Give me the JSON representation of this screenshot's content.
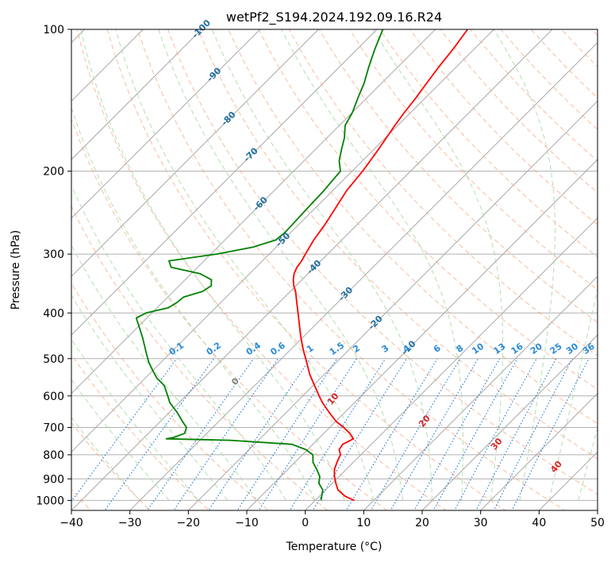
{
  "chart_data": {
    "type": "line",
    "title": "wetPf2_S194.2024.192.09.16.R24",
    "xlabel": "Temperature (°C)",
    "ylabel": "Pressure (hPa)",
    "xlim": [
      -40,
      50
    ],
    "ylim": [
      1050,
      100
    ],
    "y_log_scale": true,
    "x_ticks": [
      -40,
      -30,
      -20,
      -10,
      0,
      10,
      20,
      30,
      40,
      50
    ],
    "y_ticks": [
      100,
      200,
      300,
      400,
      500,
      600,
      700,
      800,
      900,
      1000
    ],
    "skew": true,
    "grid": true,
    "series": [
      {
        "color": "#ff0000",
        "pressure": [
          1000,
          980,
          950,
          920,
          890,
          860,
          830,
          800,
          780,
          760,
          740,
          720,
          700,
          680,
          650,
          620,
          600,
          570,
          540,
          510,
          480,
          450,
          420,
          400,
          380,
          360,
          350,
          340,
          330,
          320,
          310,
          300,
          280,
          260,
          240,
          220,
          200,
          180,
          160,
          150,
          140,
          130,
          120,
          110,
          100
        ],
        "temperature": [
          6.7,
          4.4,
          2.1,
          0.6,
          -0.8,
          -2.0,
          -2.8,
          -3.5,
          -4.6,
          -4.9,
          -4.0,
          -5.6,
          -7.6,
          -9.9,
          -12.7,
          -15.5,
          -17.2,
          -19.8,
          -22.5,
          -25.0,
          -27.7,
          -30.4,
          -33.1,
          -35.0,
          -37.0,
          -39.1,
          -40.4,
          -41.5,
          -42.4,
          -43.0,
          -43.3,
          -43.8,
          -44.8,
          -45.5,
          -46.5,
          -47.6,
          -48.2,
          -49.2,
          -50.5,
          -51.1,
          -51.6,
          -52.3,
          -53.0,
          -53.6,
          -54.5
        ]
      },
      {
        "color": "#008000",
        "pressure": [
          1000,
          980,
          950,
          920,
          890,
          860,
          830,
          800,
          780,
          760,
          745,
          740,
          735,
          720,
          700,
          680,
          650,
          620,
          600,
          570,
          550,
          530,
          510,
          490,
          470,
          450,
          430,
          410,
          400,
          390,
          380,
          370,
          360,
          350,
          340,
          330,
          320,
          310,
          300,
          290,
          280,
          270,
          260,
          240,
          220,
          200,
          190,
          180,
          170,
          160,
          150,
          140,
          130,
          120,
          110,
          100
        ],
        "temperature": [
          1.0,
          0.4,
          -0.5,
          -2.3,
          -3.3,
          -5.0,
          -6.9,
          -8.2,
          -10.3,
          -13.6,
          -25.0,
          -36.0,
          -35.0,
          -33.8,
          -34.5,
          -36.2,
          -38.7,
          -41.6,
          -43.1,
          -45.5,
          -48.0,
          -50.0,
          -52.0,
          -53.8,
          -55.6,
          -57.5,
          -59.6,
          -61.8,
          -61.0,
          -58.1,
          -57.5,
          -57.3,
          -55.0,
          -54.5,
          -55.5,
          -58.5,
          -64.5,
          -66.0,
          -59.0,
          -54.0,
          -51.3,
          -51.0,
          -51.1,
          -51.3,
          -51.5,
          -52.0,
          -54.0,
          -55.5,
          -57.0,
          -59.0,
          -60.0,
          -61.5,
          -63.0,
          -65.0,
          -67.0,
          -69.0
        ]
      }
    ],
    "dry_adiabat_labels": [
      "-100",
      "-90",
      "-80",
      "-70",
      "-60",
      "-50",
      "-40",
      "-30",
      "-20",
      "-10"
    ],
    "mixing_ratio_labels": [
      "0.1",
      "0.2",
      "0.4",
      "0.6",
      "1",
      "1.5",
      "2",
      "3",
      "4",
      "6",
      "8",
      "10",
      "13",
      "16",
      "20",
      "25",
      "30",
      "36"
    ],
    "moist_adiabat_labels": [
      "0",
      "10",
      "20",
      "30",
      "40"
    ],
    "colors": {
      "temperature": "#ff0000",
      "dewpoint": "#008000",
      "isotherm": "#9a9a9a",
      "dry_adiabat": "#f4a582",
      "moist_adiabat": "#a6d9a0",
      "mixing_ratio": "#1f77d4",
      "dry_label": "#1f6fa0",
      "moist_label": "#d62728",
      "mix_label": "#2a8ad8"
    }
  }
}
